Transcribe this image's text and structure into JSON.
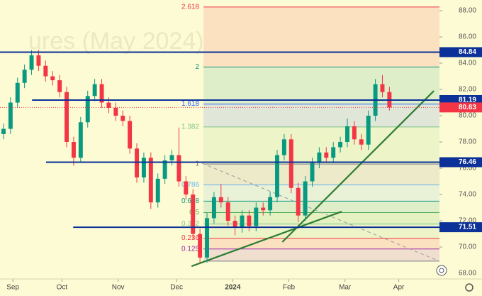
{
  "chart_data": {
    "type": "candlestick",
    "watermark": "ures (May 2024)",
    "x": [
      -4,
      -1,
      2,
      5,
      8,
      11,
      14,
      17,
      20,
      23,
      26,
      29,
      32,
      35,
      38,
      41,
      44,
      47,
      50,
      53,
      56,
      59,
      62,
      65,
      68,
      71,
      74,
      77,
      80,
      83,
      86,
      89,
      92,
      95,
      98,
      101,
      104,
      107,
      110,
      113,
      116,
      119,
      122,
      125,
      128,
      131,
      134,
      137,
      140,
      143,
      146,
      149,
      152,
      155,
      158,
      161
    ],
    "open": [
      78.6,
      79.0,
      81.0,
      82.5,
      83.5,
      84.6,
      83.8,
      83.0,
      82.7,
      81.8,
      78.0,
      76.8,
      79.5,
      81.5,
      82.4,
      81.0,
      80.6,
      80.0,
      79.6,
      77.5,
      75.3,
      76.8,
      73.4,
      75.2,
      76.6,
      77.0,
      75.0,
      74.0,
      71.0,
      69.2,
      72.2,
      73.8,
      73.4,
      72.0,
      71.5,
      72.4,
      71.6,
      73.0,
      72.8,
      73.8,
      77.0,
      78.2,
      74.5,
      72.4,
      75.0,
      76.4,
      77.2,
      76.8,
      77.6,
      78.0,
      79.2,
      78.2,
      77.8,
      80.0,
      82.4,
      81.8
    ],
    "high": [
      79.4,
      81.4,
      82.9,
      83.9,
      85.0,
      85.0,
      84.2,
      83.4,
      83.1,
      82.2,
      78.4,
      79.9,
      81.9,
      82.8,
      82.8,
      81.4,
      81.0,
      80.4,
      80.0,
      77.9,
      77.2,
      77.2,
      75.6,
      77.0,
      77.4,
      79.1,
      75.4,
      74.4,
      71.4,
      72.6,
      74.2,
      74.8,
      73.8,
      72.4,
      72.8,
      72.8,
      73.4,
      73.4,
      74.2,
      77.4,
      78.6,
      78.6,
      74.9,
      75.4,
      76.8,
      77.6,
      77.6,
      78.0,
      78.4,
      79.8,
      79.6,
      78.6,
      80.4,
      82.8,
      83.1,
      82.2
    ],
    "low": [
      78.2,
      78.6,
      80.6,
      82.1,
      83.1,
      83.4,
      82.6,
      82.3,
      81.4,
      77.6,
      76.2,
      76.4,
      79.1,
      81.1,
      80.6,
      80.2,
      79.6,
      79.2,
      77.1,
      74.9,
      74.9,
      72.9,
      73.0,
      74.8,
      76.2,
      74.6,
      73.6,
      70.6,
      68.8,
      68.8,
      71.8,
      73.0,
      71.6,
      70.9,
      71.1,
      71.2,
      71.2,
      72.4,
      72.4,
      73.4,
      76.6,
      74.1,
      71.9,
      72.0,
      74.6,
      76.0,
      76.4,
      76.4,
      77.2,
      77.6,
      77.8,
      77.4,
      77.4,
      79.6,
      81.4,
      80.4
    ],
    "close": [
      79.0,
      81.0,
      82.5,
      83.5,
      84.6,
      83.8,
      83.0,
      82.7,
      81.8,
      78.0,
      76.8,
      79.5,
      81.5,
      82.4,
      81.0,
      80.6,
      80.0,
      79.6,
      77.5,
      75.3,
      76.8,
      73.4,
      75.2,
      76.6,
      77.0,
      75.0,
      74.0,
      71.0,
      69.2,
      72.2,
      73.8,
      73.4,
      72.0,
      71.5,
      72.4,
      71.6,
      73.0,
      72.8,
      73.8,
      77.0,
      78.2,
      74.5,
      72.4,
      75.0,
      76.4,
      77.2,
      76.8,
      77.6,
      78.0,
      79.2,
      78.2,
      77.8,
      80.0,
      82.4,
      81.8,
      80.63
    ],
    "up_color": "#089981",
    "down_color": "#f23645",
    "xlim": [
      -5.5,
      182.4
    ],
    "ylim": [
      67.57,
      88.81
    ],
    "xticks": [
      {
        "value": 0,
        "label": "Sep"
      },
      {
        "value": 21,
        "label": "Oct"
      },
      {
        "value": 45,
        "label": "Nov"
      },
      {
        "value": 70,
        "label": "Dec"
      },
      {
        "value": 94,
        "label": "2024"
      },
      {
        "value": 118,
        "label": "Feb"
      },
      {
        "value": 142,
        "label": "Mar"
      },
      {
        "value": 165,
        "label": "Apr"
      }
    ],
    "yticks": [
      {
        "value": 68,
        "label": "68.00"
      },
      {
        "value": 70,
        "label": "70.00"
      },
      {
        "value": 72,
        "label": "72.00"
      },
      {
        "value": 74,
        "label": "74.00"
      },
      {
        "value": 76,
        "label": "76.00"
      },
      {
        "value": 78,
        "label": "78.00"
      },
      {
        "value": 80,
        "label": "80.00"
      },
      {
        "value": 82,
        "label": "82.00"
      },
      {
        "value": 84,
        "label": "84.00"
      },
      {
        "value": 86,
        "label": "86.00"
      },
      {
        "value": 88,
        "label": "88.00"
      }
    ],
    "hlines": [
      {
        "value": 84.84,
        "color": "#0c3299",
        "x_start": -5.5
      },
      {
        "value": 81.19,
        "color": "#0c3299",
        "x_start": 8.2
      },
      {
        "value": 76.46,
        "color": "#0c3299",
        "x_start": 14.2
      },
      {
        "value": 71.51,
        "color": "#0c3299",
        "x_start": 25.8
      }
    ],
    "last_price": {
      "value": 80.63,
      "color": "#f23645"
    },
    "fib": {
      "x_start": 81.5,
      "start_price": 68.93,
      "end_price": 76.32,
      "levels": [
        {
          "value": 0.125,
          "color": "#9c27b0"
        },
        {
          "value": 0.236,
          "color": "#f23645"
        },
        {
          "value": 0.382,
          "color": "#81c784"
        },
        {
          "value": 0.5,
          "color": "#4caf50"
        },
        {
          "value": 0.618,
          "color": "#089981"
        },
        {
          "value": 0.786,
          "color": "#64b5f6"
        },
        {
          "value": 1,
          "color": "#787b86"
        },
        {
          "value": 1.382,
          "color": "#81c784"
        },
        {
          "value": 1.618,
          "color": "#2962ff"
        },
        {
          "value": 2,
          "color": "#089981"
        },
        {
          "value": 2.618,
          "color": "#f23645"
        }
      ]
    },
    "trendlines": [
      {
        "x": [
          115.2,
          180
        ],
        "y": [
          70.38,
          81.89
        ],
        "color": "#2e7d32",
        "dashed": false
      },
      {
        "x": [
          76.4,
          140.6
        ],
        "y": [
          68.54,
          72.7
        ],
        "color": "#2e7d32",
        "dashed": false
      },
      {
        "x": [
          80.9,
          182.4
        ],
        "y": [
          76.38,
          68.92
        ],
        "color": "#9e9e9e",
        "dashed": true
      }
    ]
  }
}
